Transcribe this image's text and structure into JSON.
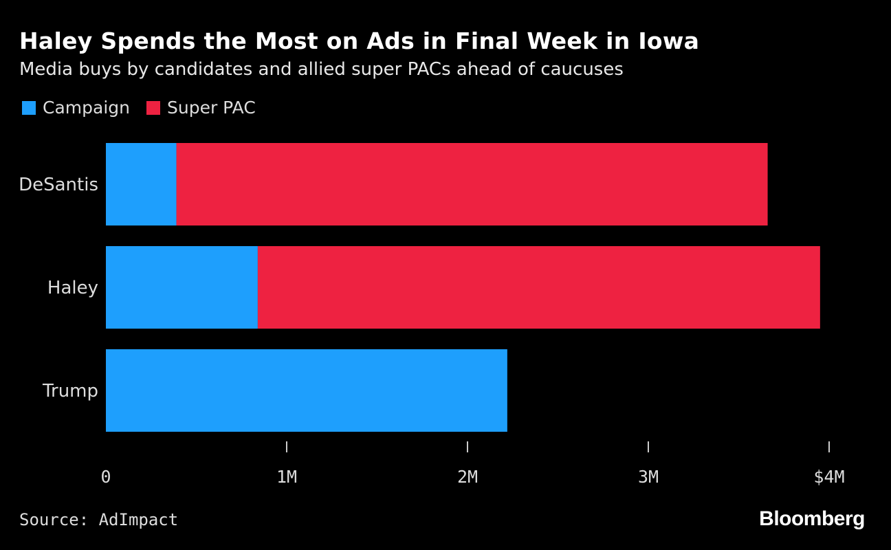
{
  "colors": {
    "campaign": "#1e9ffd",
    "super_pac": "#ee2241",
    "background": "#000000"
  },
  "footer": {
    "source": "Source: AdImpact",
    "logo": "Bloomberg"
  },
  "chart_data": {
    "type": "bar",
    "orientation": "horizontal",
    "stacked": true,
    "title": "Haley Spends the Most on Ads in Final Week in Iowa",
    "subtitle": "Media buys by candidates and allied super PACs ahead of caucuses",
    "categories": [
      "DeSantis",
      "Haley",
      "Trump"
    ],
    "series": [
      {
        "name": "Campaign",
        "values": [
          0.39,
          0.84,
          2.22
        ]
      },
      {
        "name": "Super PAC",
        "values": [
          3.27,
          3.11,
          0
        ]
      }
    ],
    "xlim": [
      0,
      4
    ],
    "ticks": [
      0,
      1,
      2,
      3,
      4
    ],
    "tick_labels": [
      "0",
      "1M",
      "2M",
      "3M",
      "$4M"
    ],
    "legend": "top-left",
    "grid": false
  }
}
